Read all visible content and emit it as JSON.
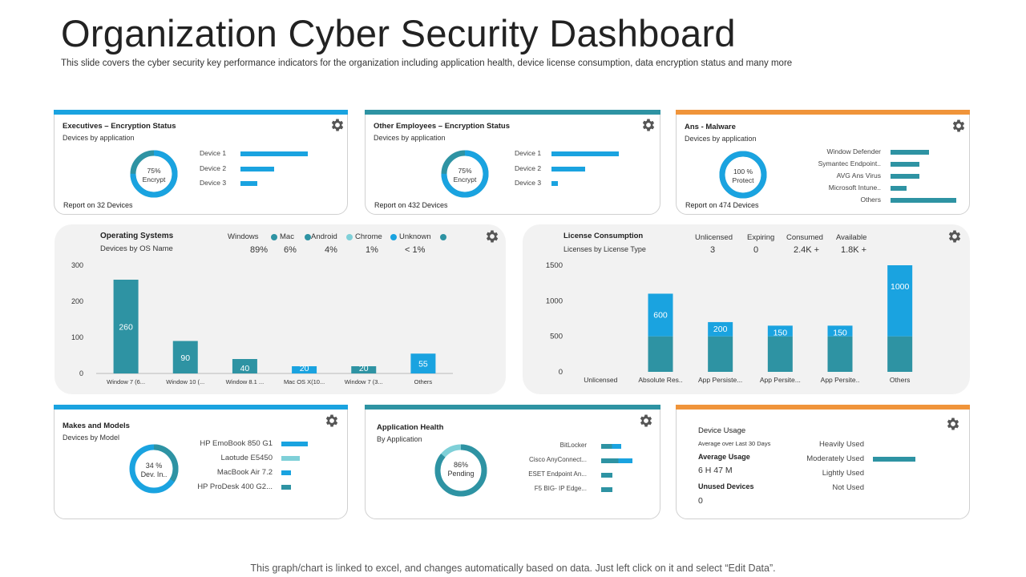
{
  "page": {
    "title": "Organization Cyber Security Dashboard",
    "subtitle": "This slide covers the cyber security key performance  indicators for the organization including application health,  device license consumption, data encryption status and many more",
    "footer": "This graph/chart is linked to excel,  and changes automatically based on data. Just left click on it and select “Edit Data”."
  },
  "colors": {
    "blue": "#1aa3e0",
    "teal": "#2e93a3",
    "orange": "#f0943a",
    "light_teal": "#7fd0d8"
  },
  "exec": {
    "title": "Executives – Encryption Status",
    "subtitle": "Devices by application",
    "donut_line1": "75%",
    "donut_line2": "Encrypt",
    "donut_fraction": 0.75,
    "report": "Report on 32 Devices",
    "bars": [
      {
        "label": "Device 1",
        "value": 1.0
      },
      {
        "label": "Device 2",
        "value": 0.5
      },
      {
        "label": "Device 3",
        "value": 0.25
      }
    ]
  },
  "other": {
    "title": "Other Employees – Encryption  Status",
    "subtitle": "Devices by application",
    "donut_line1": "75%",
    "donut_line2": "Encrypt",
    "donut_fraction": 0.75,
    "report": "Report on 432 Devices",
    "bars": [
      {
        "label": "Device 1",
        "value": 1.0
      },
      {
        "label": "Device 2",
        "value": 0.5
      },
      {
        "label": "Device 3",
        "value": 0.1
      }
    ]
  },
  "malware": {
    "title": "Ans - Malware",
    "subtitle": "Devices by application",
    "donut_line1": "100 %",
    "donut_line2": "Protect",
    "donut_fraction": 1.0,
    "report": "Report on 474 Devices",
    "bars": [
      {
        "label": "Window Defender",
        "value": 0.58
      },
      {
        "label": "Symantec  Endpoint..",
        "value": 0.44
      },
      {
        "label": "AVG Ans Virus",
        "value": 0.44
      },
      {
        "label": "Microsoft  Intune..",
        "value": 0.24
      },
      {
        "label": "Others",
        "value": 1.0
      }
    ]
  },
  "os": {
    "title": "Operating Systems",
    "subtitle": "Devices by OS  Name",
    "legend": [
      {
        "label": "Windows",
        "pct": "89%",
        "color": "#2e93a3"
      },
      {
        "label": "Mac",
        "pct": "6%",
        "color": "#2e93a3"
      },
      {
        "label": "Android",
        "pct": "4%",
        "color": "#7fd0d8"
      },
      {
        "label": "Chrome",
        "pct": "1%",
        "color": "#1aa3e0"
      },
      {
        "label": "Unknown",
        "pct": "< 1%",
        "color": "#2e93a3"
      }
    ]
  },
  "license": {
    "title": "License Consumption",
    "subtitle": "Licenses by License Type",
    "stats": [
      {
        "label": "Unlicensed",
        "value": "3"
      },
      {
        "label": "Expiring",
        "value": "0"
      },
      {
        "label": "Consumed",
        "value": "2.4K +"
      },
      {
        "label": "Available",
        "value": "1.8K +"
      }
    ]
  },
  "makes": {
    "title": "Makes and Models",
    "subtitle": "Devices by Model",
    "donut_line1": "34 %",
    "donut_line2": "Dev. In..",
    "donut_fraction": 0.34,
    "bars": [
      {
        "label": "HP EmoBook 850  G1",
        "value": 1.0,
        "color": "#1aa3e0"
      },
      {
        "label": "Laotude E5450",
        "value": 0.7,
        "color": "#7fd0d8"
      },
      {
        "label": "MacBook Air 7.2",
        "value": 0.35,
        "color": "#1aa3e0"
      },
      {
        "label": "HP ProDesk 400 G2...",
        "value": 0.35,
        "color": "#2e93a3"
      }
    ]
  },
  "apphealth": {
    "title": "Application Health",
    "subtitle": "By Application",
    "donut_line1": "86%",
    "donut_line2": "Pending",
    "donut_fraction": 0.86,
    "bars": [
      {
        "label": "BitLocker",
        "value": 0.65
      },
      {
        "label": "Cisco AnyConnect...",
        "value": 1.0
      },
      {
        "label": "ESET  Endpoint  An...",
        "value": 0.35
      },
      {
        "label": "F5 BIG-  IP Edge...",
        "value": 0.35
      }
    ]
  },
  "usage": {
    "title": "Device Usage",
    "avg_over": "Average over    Last  30 Days",
    "avg_usage_label": "Average  Usage",
    "avg_usage_value": "6 H  47 M",
    "unused_label": "Unused Devices",
    "unused_value": "0",
    "bars": [
      {
        "label": "Heavily Used",
        "value": 0
      },
      {
        "label": "Moderately Used",
        "value": 1.0
      },
      {
        "label": "Lightly Used",
        "value": 0
      },
      {
        "label": "Not Used",
        "value": 0
      }
    ]
  },
  "chart_data": [
    {
      "type": "bar",
      "title": "Operating Systems",
      "categories": [
        "Window 7 (6...",
        "Window  10 (...",
        "Window 8.1 ...",
        "Mac OS X(10...",
        "Window 7 (3...",
        "Others"
      ],
      "values": [
        260,
        90,
        40,
        20,
        20,
        55
      ],
      "bar_colors": [
        "#2e93a3",
        "#2e93a3",
        "#2e93a3",
        "#1aa3e0",
        "#2e93a3",
        "#1aa3e0"
      ],
      "yticks": [
        0,
        100,
        200,
        300
      ],
      "ylim": [
        0,
        300
      ]
    },
    {
      "type": "bar",
      "title": "License Consumption",
      "categories": [
        "Unlicensed",
        "Absolute Res..",
        "App Persiste...",
        "App Persite...",
        "App Persite..",
        "Others"
      ],
      "series": [
        {
          "values": [
            0,
            500,
            500,
            500,
            500,
            500
          ],
          "color": "#2e93a3"
        },
        {
          "values": [
            0,
            600,
            200,
            150,
            150,
            1000
          ],
          "color": "#1aa3e0"
        }
      ],
      "labels": [
        "",
        "600",
        "200",
        "150",
        "150",
        "1000"
      ],
      "yticks": [
        0,
        500,
        1000,
        1500
      ],
      "ylim": [
        0,
        1500
      ]
    }
  ]
}
